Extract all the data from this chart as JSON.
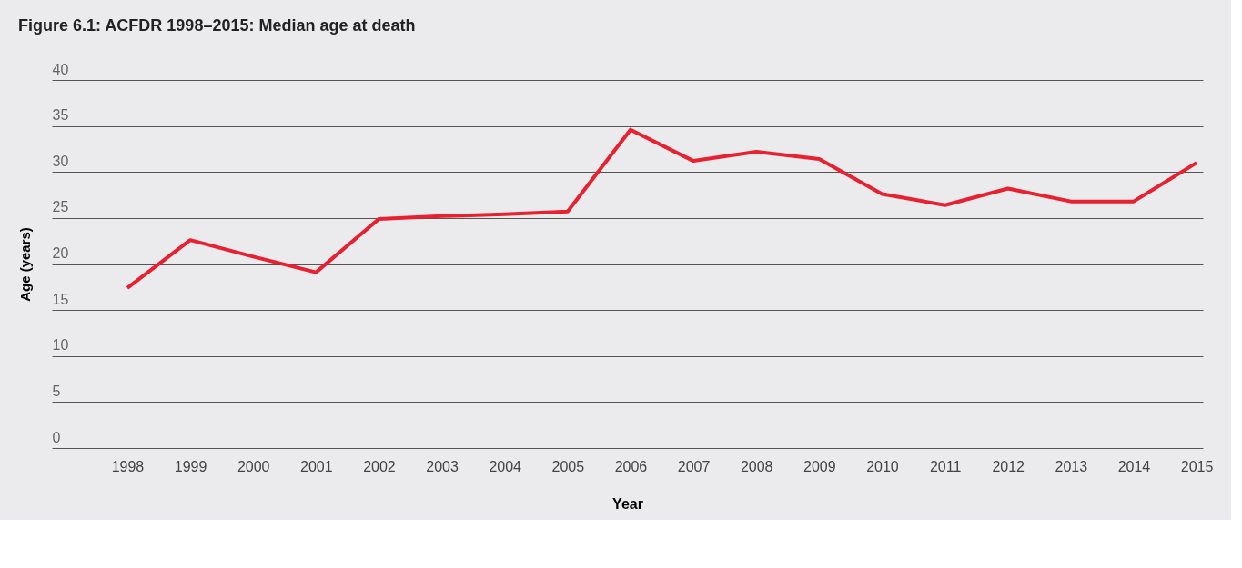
{
  "chart_data": {
    "type": "line",
    "title": "Figure 6.1: ACFDR 1998–2015: Median age at death",
    "xlabel": "Year",
    "ylabel": "Age (years)",
    "categories": [
      "1998",
      "1999",
      "2000",
      "2001",
      "2002",
      "2003",
      "2004",
      "2005",
      "2006",
      "2007",
      "2008",
      "2009",
      "2010",
      "2011",
      "2012",
      "2013",
      "2014",
      "2015"
    ],
    "series": [
      {
        "color": "#e8202f",
        "values": [
          17.4,
          22.6,
          20.8,
          19.1,
          24.9,
          25.2,
          25.4,
          25.7,
          34.6,
          31.2,
          32.2,
          31.4,
          27.6,
          26.4,
          28.2,
          26.8,
          26.8,
          31.0
        ]
      }
    ],
    "ylim": [
      0,
      40
    ],
    "yticks": [
      0,
      5,
      10,
      15,
      20,
      25,
      30,
      35,
      40
    ],
    "grid": "y",
    "legend": false,
    "marker": "none",
    "line_style": "solid"
  }
}
